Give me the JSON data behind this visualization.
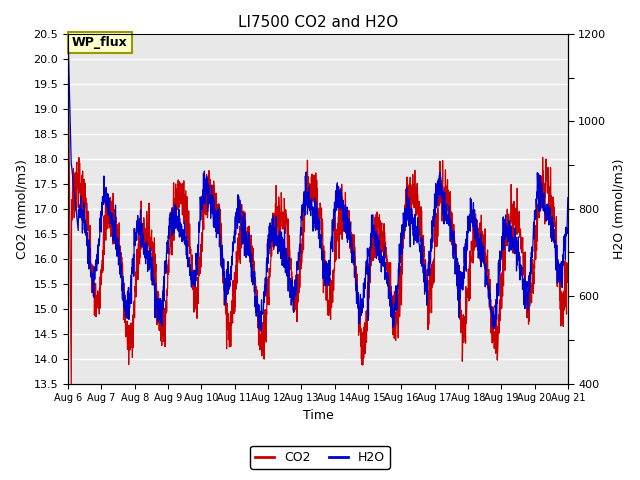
{
  "title": "LI7500 CO2 and H2O",
  "xlabel": "Time",
  "ylabel_left": "CO2 (mmol/m3)",
  "ylabel_right": "H2O (mmol/m3)",
  "ylim_left": [
    13.5,
    20.5
  ],
  "ylim_right": [
    400,
    1200
  ],
  "xtick_labels": [
    "Aug 6",
    "Aug 7",
    "Aug 8",
    "Aug 9",
    "Aug 10",
    "Aug 11",
    "Aug 12",
    "Aug 13",
    "Aug 14",
    "Aug 15",
    "Aug 16",
    "Aug 17",
    "Aug 18",
    "Aug 19",
    "Aug 20",
    "Aug 21"
  ],
  "co2_color": "#cc0000",
  "h2o_color": "#0000cc",
  "annotation_text": "WP_flux",
  "annotation_bg": "#ffffcc",
  "annotation_border": "#999900",
  "plot_bg": "#e8e8e8",
  "linewidth": 0.9,
  "legend_co2": "CO2",
  "legend_h2o": "H2O",
  "title_fontsize": 11,
  "axis_fontsize": 9,
  "tick_fontsize": 8
}
